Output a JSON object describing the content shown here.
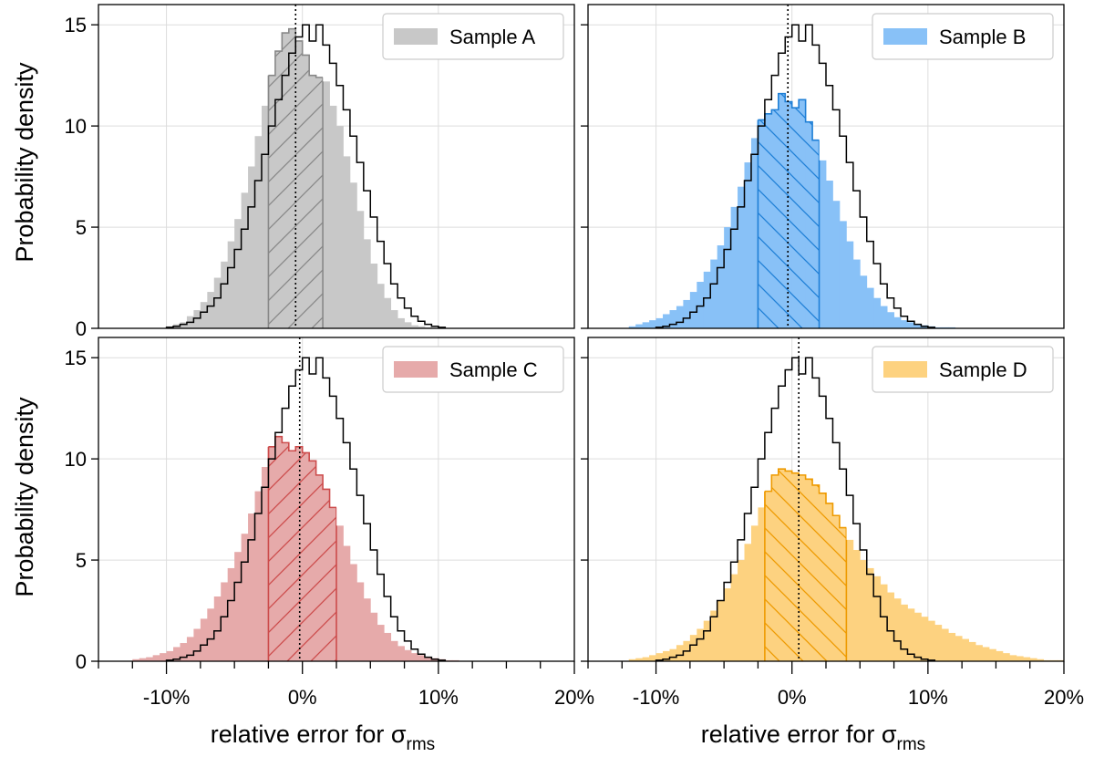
{
  "chart_data": {
    "type": "histogram",
    "ylabel": "Probability density",
    "xlabel_prefix": "relative error for σ",
    "xlabel_subscript": "rms",
    "xlim": [
      -15,
      20
    ],
    "ylim": [
      0,
      16
    ],
    "x_ticks": [
      -10,
      0,
      10,
      20
    ],
    "x_tick_labels": [
      "-10%",
      "0%",
      "10%",
      "20%"
    ],
    "y_ticks": [
      0,
      5,
      10,
      15
    ],
    "y_tick_labels": [
      "0",
      "5",
      "10",
      "15"
    ],
    "grid": true,
    "reference": {
      "name": "reference (black outline)",
      "bin_start": -10,
      "bin_width": 0.5,
      "values": [
        0.05,
        0.1,
        0.2,
        0.3,
        0.5,
        0.8,
        1.1,
        1.5,
        2.2,
        3.0,
        3.9,
        4.9,
        6.0,
        7.3,
        8.6,
        10.0,
        11.3,
        12.5,
        13.6,
        14.4,
        15.0,
        14.2,
        15.0,
        14.0,
        13.1,
        12.0,
        10.8,
        9.5,
        8.2,
        6.8,
        5.5,
        4.3,
        3.2,
        2.2,
        1.5,
        1.0,
        0.6,
        0.35,
        0.2,
        0.1,
        0.05
      ]
    },
    "panels": [
      {
        "name": "Sample A",
        "legend_label": "Sample A",
        "color": "#c8c8c8",
        "edge_color": "#888888",
        "median": -0.5,
        "hatch_range": [
          -2.5,
          1.5
        ],
        "hatch_dir": "forward",
        "bin_start": -10,
        "bin_width": 0.5,
        "values": [
          0.1,
          0.2,
          0.3,
          0.6,
          0.9,
          1.3,
          1.8,
          2.5,
          3.3,
          4.3,
          5.4,
          6.7,
          8.0,
          9.5,
          11.0,
          12.5,
          13.7,
          14.6,
          14.8,
          14.2,
          13.5,
          12.5,
          12.4,
          12.2,
          11.0,
          10.0,
          8.5,
          7.2,
          5.8,
          4.4,
          3.2,
          2.2,
          1.5,
          0.9,
          0.5,
          0.3,
          0.15,
          0.1,
          0.05
        ]
      },
      {
        "name": "Sample B",
        "legend_label": "Sample B",
        "color": "#88c1f7",
        "edge_color": "#1f7fd6",
        "median": -0.3,
        "hatch_range": [
          -2.5,
          2.0
        ],
        "hatch_dir": "backward",
        "bin_start": -12,
        "bin_width": 0.5,
        "values": [
          0.1,
          0.2,
          0.3,
          0.4,
          0.5,
          0.7,
          0.9,
          1.1,
          1.4,
          1.8,
          2.3,
          2.8,
          3.4,
          4.1,
          5.0,
          6.0,
          7.0,
          8.2,
          9.4,
          10.3,
          10.6,
          10.8,
          11.6,
          11.2,
          10.9,
          11.3,
          10.2,
          9.3,
          8.3,
          7.3,
          6.3,
          5.3,
          4.3,
          3.4,
          2.6,
          2.0,
          1.5,
          1.1,
          0.8,
          0.55,
          0.4,
          0.3,
          0.2,
          0.15,
          0.1,
          0.05,
          0.05,
          0.05
        ]
      },
      {
        "name": "Sample C",
        "legend_label": "Sample C",
        "color": "#e6aaaa",
        "edge_color": "#cc4b4b",
        "median": -0.2,
        "hatch_range": [
          -2.5,
          2.5
        ],
        "hatch_dir": "forward",
        "bin_start": -12.5,
        "bin_width": 0.5,
        "values": [
          0.1,
          0.15,
          0.2,
          0.3,
          0.4,
          0.5,
          0.7,
          0.9,
          1.2,
          1.6,
          2.1,
          2.6,
          3.2,
          3.9,
          4.6,
          5.4,
          6.3,
          7.3,
          8.4,
          9.6,
          10.6,
          11.1,
          10.8,
          10.4,
          10.6,
          10.3,
          9.9,
          9.2,
          8.5,
          7.6,
          6.7,
          5.7,
          4.8,
          3.9,
          3.1,
          2.4,
          1.8,
          1.4,
          1.0,
          0.75,
          0.55,
          0.4,
          0.3,
          0.2,
          0.15,
          0.1,
          0.05,
          0.05
        ]
      },
      {
        "name": "Sample D",
        "legend_label": "Sample D",
        "color": "#fdd280",
        "edge_color": "#ee9a00",
        "median": 0.5,
        "hatch_range": [
          -2.0,
          4.0
        ],
        "hatch_dir": "backward",
        "bin_start": -12,
        "bin_width": 0.5,
        "values": [
          0.1,
          0.15,
          0.2,
          0.3,
          0.4,
          0.5,
          0.6,
          0.8,
          1.0,
          1.3,
          1.6,
          2.0,
          2.5,
          3.0,
          3.6,
          4.3,
          5.0,
          5.8,
          6.7,
          7.6,
          8.4,
          9.2,
          9.5,
          9.4,
          9.3,
          9.2,
          9.0,
          8.7,
          8.3,
          7.8,
          7.2,
          6.6,
          6.0,
          5.5,
          5.0,
          4.6,
          4.2,
          3.8,
          3.4,
          3.1,
          2.8,
          2.6,
          2.4,
          2.2,
          2.0,
          1.8,
          1.6,
          1.4,
          1.25,
          1.1,
          0.95,
          0.8,
          0.7,
          0.6,
          0.5,
          0.4,
          0.3,
          0.25,
          0.2,
          0.15,
          0.1,
          0.05,
          0.05,
          0.05
        ]
      }
    ]
  }
}
